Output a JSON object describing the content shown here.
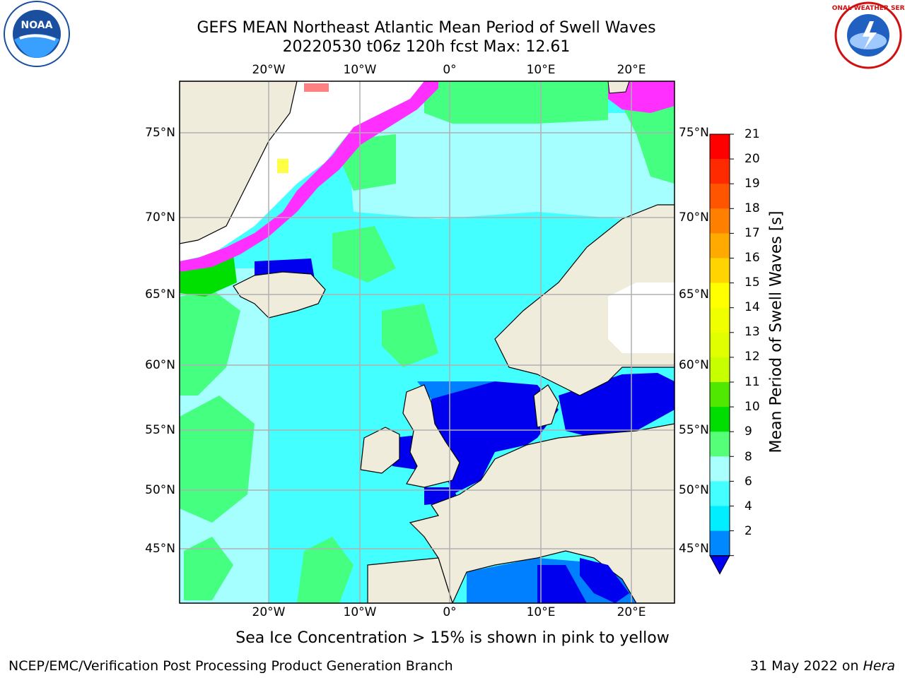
{
  "title": {
    "line1": "GEFS MEAN Northeast Atlantic Mean Period of Swell Waves",
    "line2": "20220530 t06z 120h fcst   Max: 12.61"
  },
  "map": {
    "lon_labels": [
      "20°W",
      "10°W",
      "0°",
      "10°E",
      "20°E"
    ],
    "lat_labels": [
      "75°N",
      "70°N",
      "65°N",
      "60°N",
      "55°N",
      "50°N",
      "45°N"
    ],
    "ocean_colors": [
      "#ffffff",
      "#0000ee",
      "#0080ff",
      "#00e8ff",
      "#44ffff",
      "#a4fffe",
      "#44ff80",
      "#00e000",
      "#ff30ff",
      "#ffff44"
    ],
    "land_color": "#efecdc",
    "grid_color": "#b0b0b0"
  },
  "colorbar": {
    "title": "Mean Period of Swell Waves [s]",
    "ticks": [
      "21",
      "20",
      "19",
      "18",
      "17",
      "16",
      "15",
      "14",
      "13",
      "12",
      "11",
      "10",
      "9",
      "8",
      "6",
      "4",
      "2"
    ],
    "colors": [
      "#ff0000",
      "#ff2a00",
      "#ff5500",
      "#ff8000",
      "#ffaa00",
      "#ffd400",
      "#ffff00",
      "#f0ff00",
      "#e0ff00",
      "#c8ff00",
      "#50e800",
      "#00dd00",
      "#55ff77",
      "#a8fffd",
      "#44ffff",
      "#00eeff",
      "#0088ff"
    ],
    "extend_color": "#0000ee"
  },
  "note": "Sea Ice Concentration > 15% is shown in pink to yellow",
  "footer": {
    "left": "NCEP/EMC/Verification Post Processing Product Generation Branch",
    "right_date": "31 May 2022 on ",
    "right_host": "Hera"
  },
  "logos": {
    "noaa": "NOAA",
    "nws": "NATIONAL WEATHER SERVICE"
  }
}
